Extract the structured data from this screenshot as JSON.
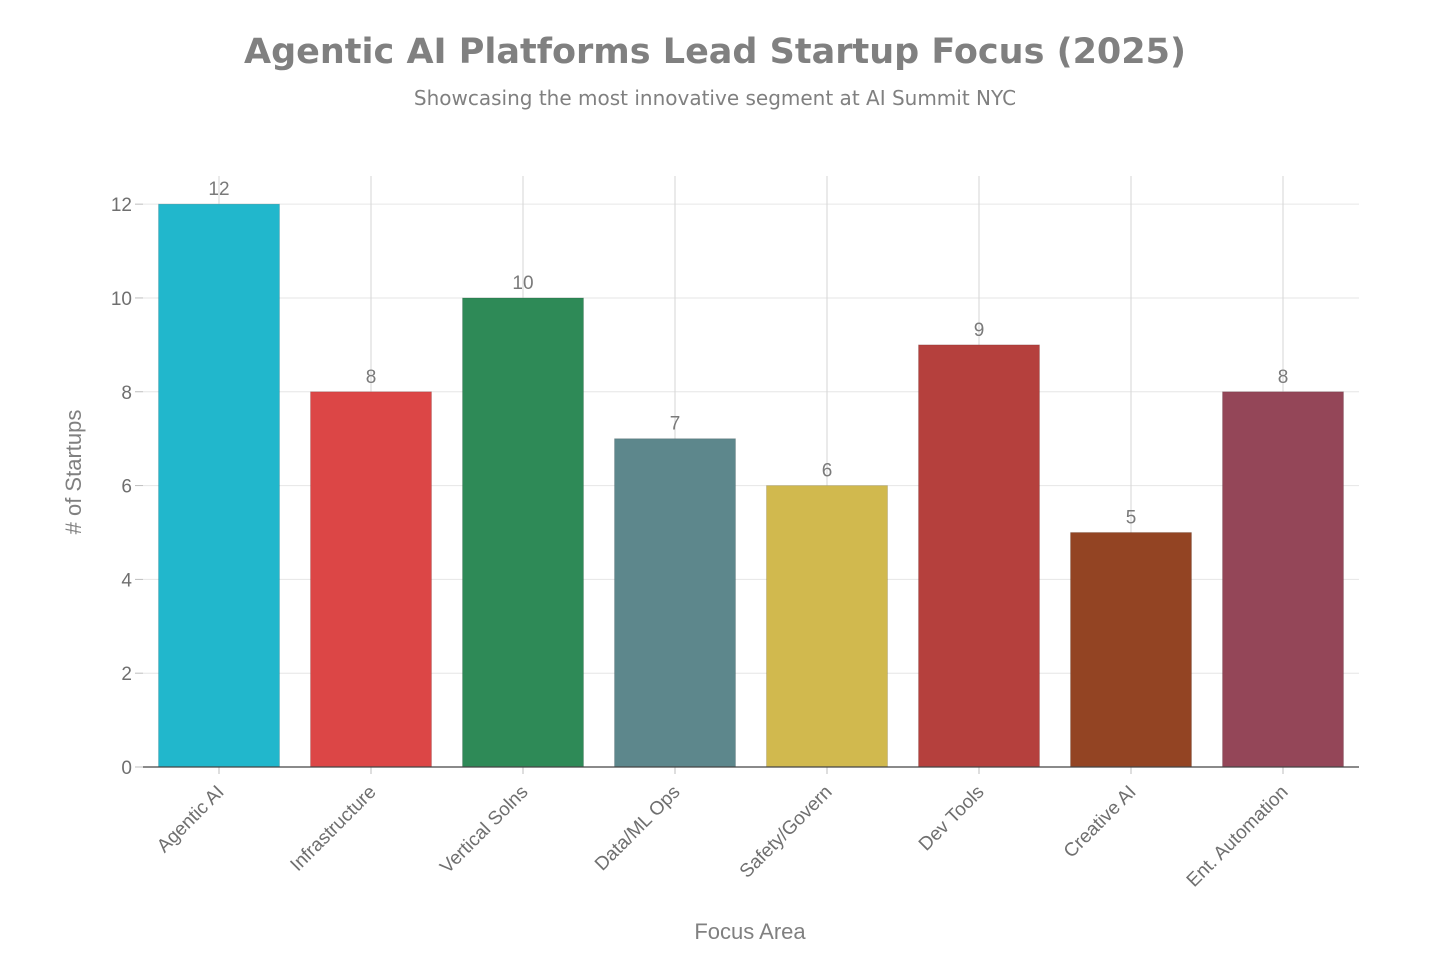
{
  "chart_data": {
    "type": "bar",
    "title": "Agentic AI Platforms Lead Startup Focus (2025)",
    "subtitle": "Showcasing the most innovative segment at AI Summit NYC",
    "xlabel": "Focus Area",
    "ylabel": "# of Startups",
    "ylim": [
      0,
      12.6
    ],
    "yticks": [
      0,
      2,
      4,
      6,
      8,
      10,
      12
    ],
    "categories": [
      "Agentic AI",
      "Infrastructure",
      "Vertical Solns",
      "Data/ML Ops",
      "Safety/Govern",
      "Dev Tools",
      "Creative AI",
      "Ent. Automation"
    ],
    "values": [
      12,
      8,
      10,
      7,
      6,
      9,
      5,
      8
    ],
    "colors": [
      "#21b7cc",
      "#dc4646",
      "#2e8a57",
      "#5d878c",
      "#d1b94e",
      "#b5403d",
      "#934423",
      "#944658"
    ],
    "grid": true,
    "legend": "none"
  }
}
